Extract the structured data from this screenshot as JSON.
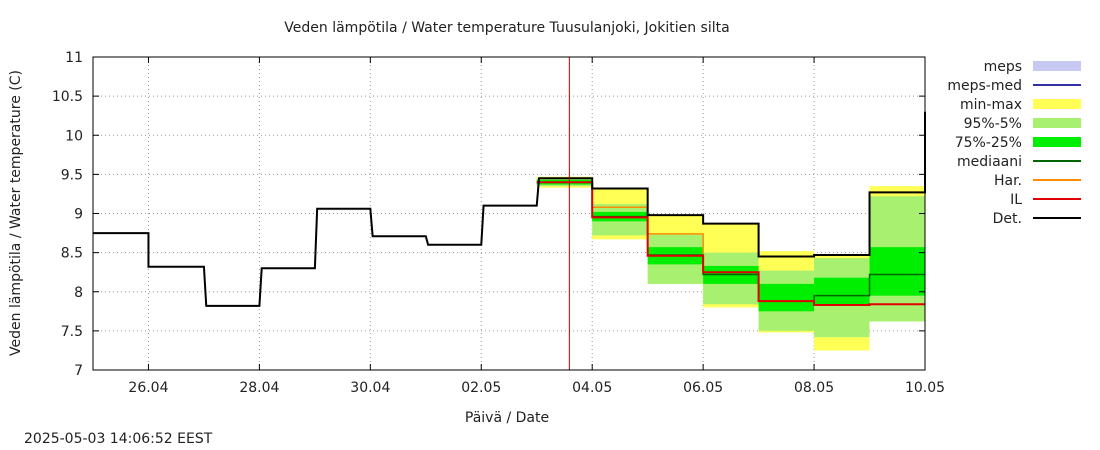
{
  "chart_data": {
    "type": "line",
    "title": "Veden lämpötila / Water temperature Tuusulanjoki, Jokitien silta",
    "xlabel": "Päivä / Date",
    "ylabel": "Veden lämpötila / Water temperature (C)",
    "timestamp": "2025-05-03 14:06:52 EEST",
    "xlim": [
      "2025-04-25",
      "2025-05-10"
    ],
    "ylim": [
      7,
      11
    ],
    "grid": true,
    "legend_position": "right",
    "now_marker": "2025-05-03T14:06",
    "x_ticks": [
      {
        "date": "2025-04-26",
        "label": "26.04"
      },
      {
        "date": "2025-04-28",
        "label": "28.04"
      },
      {
        "date": "2025-04-30",
        "label": "30.04"
      },
      {
        "date": "2025-05-02",
        "label": "02.05"
      },
      {
        "date": "2025-05-04",
        "label": "04.05"
      },
      {
        "date": "2025-05-06",
        "label": "06.05"
      },
      {
        "date": "2025-05-08",
        "label": "08.05"
      },
      {
        "date": "2025-05-10",
        "label": "10.05"
      }
    ],
    "y_ticks": [
      "7",
      "7.5",
      "8",
      "8.5",
      "9",
      "9.5",
      "10",
      "10.5",
      "11"
    ],
    "legend": [
      {
        "label": "meps",
        "kind": "box",
        "color": "#c8c8f4"
      },
      {
        "label": "meps-med",
        "kind": "line",
        "color": "#3030a0"
      },
      {
        "label": "min-max",
        "kind": "box",
        "color": "#ffff55"
      },
      {
        "label": "95%-5%",
        "kind": "box",
        "color": "#a8f070"
      },
      {
        "label": "75%-25%",
        "kind": "box",
        "color": "#00ee00"
      },
      {
        "label": "mediaani",
        "kind": "line",
        "color": "#006400"
      },
      {
        "label": "Har.",
        "kind": "line",
        "color": "#ff8c00"
      },
      {
        "label": "IL",
        "kind": "line",
        "color": "#e00000"
      },
      {
        "label": "Det.",
        "kind": "line",
        "color": "#000000"
      }
    ],
    "forecast_steps": [
      {
        "start": "2025-05-03",
        "end": "2025-05-04",
        "min": 9.33,
        "p5": 9.35,
        "p25": 9.37,
        "median": 9.4,
        "p75": 9.43,
        "p95": 9.45,
        "max": 9.47,
        "har": 9.4,
        "il": 9.4,
        "det": 9.45
      },
      {
        "start": "2025-05-04",
        "end": "2025-05-05",
        "min": 8.67,
        "p5": 8.72,
        "p25": 8.9,
        "median": 8.96,
        "p75": 9.02,
        "p95": 9.12,
        "max": 9.33,
        "har": 9.08,
        "il": 8.95,
        "det": 9.32
      },
      {
        "start": "2025-05-05",
        "end": "2025-05-06",
        "min": 8.1,
        "p5": 8.1,
        "p25": 8.35,
        "median": 8.47,
        "p75": 8.57,
        "p95": 8.73,
        "max": 8.98,
        "har": 8.74,
        "il": 8.46,
        "det": 8.98
      },
      {
        "start": "2025-05-06",
        "end": "2025-05-07",
        "min": 7.8,
        "p5": 7.84,
        "p25": 8.1,
        "median": 8.22,
        "p75": 8.33,
        "p95": 8.5,
        "max": 8.87,
        "har": 8.25,
        "il": 8.25,
        "det": 8.87
      },
      {
        "start": "2025-05-07",
        "end": "2025-05-08",
        "min": 7.48,
        "p5": 7.5,
        "p25": 7.75,
        "median": 7.88,
        "p75": 8.1,
        "p95": 8.27,
        "max": 8.52,
        "har": 7.88,
        "il": 7.88,
        "det": 8.45
      },
      {
        "start": "2025-05-08",
        "end": "2025-05-09",
        "min": 7.25,
        "p5": 7.42,
        "p25": 7.84,
        "median": 7.95,
        "p75": 8.18,
        "p95": 8.43,
        "max": 8.48,
        "har": 7.83,
        "il": 7.83,
        "det": 8.47
      },
      {
        "start": "2025-05-09",
        "end": "2025-05-10",
        "min": 7.62,
        "p5": 7.62,
        "p25": 7.95,
        "median": 8.22,
        "p75": 8.57,
        "p95": 9.22,
        "max": 9.35,
        "har": 7.84,
        "il": 7.84,
        "det": 9.27
      }
    ],
    "series": [
      {
        "name": "Det.",
        "color": "#000000",
        "step_points": [
          [
            "2025-04-25T00:00",
            8.75
          ],
          [
            "2025-04-26T00:00",
            8.75
          ],
          [
            "2025-04-26T00:00",
            8.32
          ],
          [
            "2025-04-27T00:00",
            8.32
          ],
          [
            "2025-04-27T01:00",
            7.82
          ],
          [
            "2025-04-28T00:00",
            7.82
          ],
          [
            "2025-04-28T01:00",
            8.3
          ],
          [
            "2025-04-29T00:00",
            8.3
          ],
          [
            "2025-04-29T01:00",
            9.06
          ],
          [
            "2025-04-30T00:00",
            9.06
          ],
          [
            "2025-04-30T01:00",
            8.71
          ],
          [
            "2025-05-01T00:00",
            8.71
          ],
          [
            "2025-05-01T01:00",
            8.6
          ],
          [
            "2025-05-02T00:00",
            8.6
          ],
          [
            "2025-05-02T01:00",
            9.1
          ],
          [
            "2025-05-03T00:00",
            9.1
          ],
          [
            "2025-05-03T01:00",
            9.45
          ],
          [
            "2025-05-04T00:00",
            9.45
          ],
          [
            "2025-05-04T00:00",
            9.32
          ],
          [
            "2025-05-05T00:00",
            9.32
          ],
          [
            "2025-05-05T00:00",
            8.98
          ],
          [
            "2025-05-06T00:00",
            8.98
          ],
          [
            "2025-05-06T00:00",
            8.87
          ],
          [
            "2025-05-07T00:00",
            8.87
          ],
          [
            "2025-05-07T00:00",
            8.45
          ],
          [
            "2025-05-08T00:00",
            8.45
          ],
          [
            "2025-05-08T00:00",
            8.47
          ],
          [
            "2025-05-09T00:00",
            8.47
          ],
          [
            "2025-05-09T00:00",
            9.27
          ],
          [
            "2025-05-10T00:00",
            9.27
          ],
          [
            "2025-05-10T00:00",
            10.3
          ]
        ]
      }
    ]
  }
}
